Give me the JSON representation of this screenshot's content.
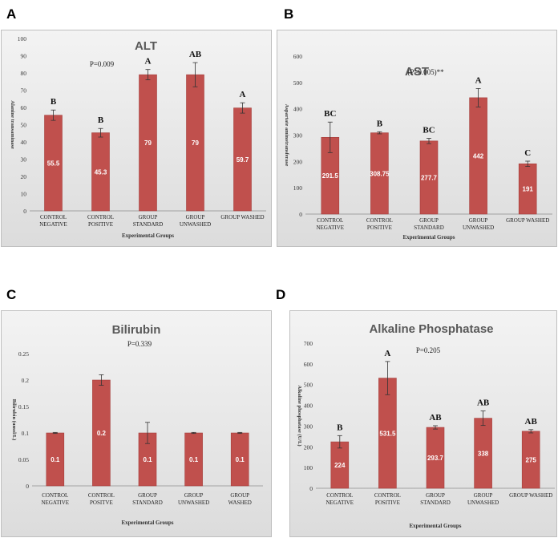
{
  "colors": {
    "bar": "#c0504d",
    "bar_edge": "#a63f3c",
    "error": "#333333"
  },
  "panel_letters": [
    "A",
    "B",
    "C",
    "D"
  ],
  "chart_data": [
    {
      "type": "bar",
      "title": "ALT",
      "ylabel": "Alanine transaminase",
      "xlabel": "Experimental Groups",
      "annotation": "P=0.009",
      "ylim": [
        0,
        100
      ],
      "yticks": [
        0,
        10,
        20,
        30,
        40,
        50,
        60,
        70,
        80,
        90,
        100
      ],
      "categories": [
        [
          "CONTROL",
          "NEGATIVE"
        ],
        [
          "CONTROL",
          "POSITIVE"
        ],
        [
          "GROUP",
          "STANDARD"
        ],
        [
          "GROUP",
          "UNWASHED"
        ],
        [
          "GROUP WASHED"
        ]
      ],
      "values": [
        55.5,
        45.3,
        79,
        79,
        59.7
      ],
      "value_labels": [
        "55.5",
        "45.3",
        "79",
        "79",
        "59.7"
      ],
      "errors": [
        3,
        2.5,
        3,
        7,
        3
      ],
      "significance": [
        "B",
        "B",
        "A",
        "AB",
        "A"
      ],
      "grid": false
    },
    {
      "type": "bar",
      "title": "AST",
      "ylabel": "Aspartate aminotransferase",
      "xlabel": "Experimental Groups",
      "annotation": "(P=0.005)**",
      "ylim": [
        0,
        600
      ],
      "yticks": [
        0,
        100,
        200,
        300,
        400,
        500,
        600
      ],
      "categories": [
        [
          "CONTROL",
          "NEGATIVE"
        ],
        [
          "CONTROL",
          "POSITIVE"
        ],
        [
          "GROUP",
          "STANDARD"
        ],
        [
          "GROUP",
          "UNWASHED"
        ],
        [
          "GROUP WASHED"
        ]
      ],
      "values": [
        291.5,
        308.75,
        277.7,
        442,
        191
      ],
      "value_labels": [
        "291.5",
        "308.75",
        "277.7",
        "442",
        "191"
      ],
      "errors": [
        58,
        4,
        10,
        35,
        10
      ],
      "significance": [
        "BC",
        "B",
        "BC",
        "A",
        "C"
      ],
      "grid": false
    },
    {
      "type": "bar",
      "title": "Bilirubin",
      "ylabel": "Bilirubin (umol/L)",
      "xlabel": "Experimental Groups",
      "annotation": "P=0.339",
      "ylim": [
        0,
        0.25
      ],
      "yticks": [
        0,
        0.05,
        0.1,
        0.15,
        0.2,
        0.25
      ],
      "ytick_labels": [
        "0",
        "0.05",
        "0.1",
        "0.15",
        "0.2",
        "0.25"
      ],
      "categories": [
        [
          "CONTROL",
          "NEGATIVE"
        ],
        [
          "CONTROL",
          "POSITVE"
        ],
        [
          "GROUP",
          "STANDARD"
        ],
        [
          "GROUP",
          "UNWASHED"
        ],
        [
          "GROUP",
          "WASHED"
        ]
      ],
      "values": [
        0.1,
        0.2,
        0.1,
        0.1,
        0.1
      ],
      "value_labels": [
        "0.1",
        "0.2",
        "0.1",
        "0.1",
        "0.1"
      ],
      "errors": [
        0.001,
        0.01,
        0.02,
        0.001,
        0.001
      ],
      "significance": [
        "",
        "",
        "",
        "",
        ""
      ],
      "grid": false
    },
    {
      "type": "bar",
      "title": "Alkaline Phosphatase",
      "ylabel": "Alkaline phosphatase (U/L)",
      "xlabel": "Experimental Groups",
      "annotation": "P=0.205",
      "ylim": [
        0,
        700
      ],
      "yticks": [
        0,
        100,
        200,
        300,
        400,
        500,
        600,
        700
      ],
      "categories": [
        [
          "CONTROL",
          "NEGATIVE"
        ],
        [
          "CONTROL",
          "POSITIVE"
        ],
        [
          "GROUP",
          "STANDARD"
        ],
        [
          "GROUP",
          "UNWASHED"
        ],
        [
          "GROUP WASHED"
        ]
      ],
      "values": [
        224,
        531.5,
        293.7,
        338,
        275
      ],
      "value_labels": [
        "224",
        "531.5",
        "293.7",
        "338",
        "275"
      ],
      "errors": [
        30,
        80,
        8,
        35,
        8
      ],
      "significance": [
        "B",
        "A",
        "AB",
        "AB",
        "AB"
      ],
      "grid": false
    }
  ]
}
